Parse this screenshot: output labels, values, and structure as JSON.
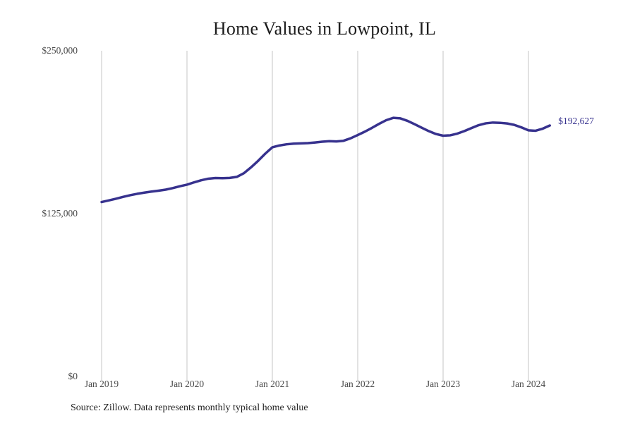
{
  "header": {
    "title": "Home Values in Lowpoint, IL"
  },
  "footer": {
    "source_note": "Source: Zillow. Data represents monthly typical home value"
  },
  "colors": {
    "line": "#37328e",
    "grid": "#c4c4c4",
    "axis_text": "#4a4a4a",
    "title_text": "#1c1c1c",
    "source_text": "#222222",
    "background": "#ffffff"
  },
  "chart_data": {
    "type": "line",
    "title": "Home Values in Lowpoint, IL",
    "series_name": "Monthly typical home value (USD)",
    "x": [
      "Jan 2019",
      "Feb 2019",
      "Mar 2019",
      "Apr 2019",
      "May 2019",
      "Jun 2019",
      "Jul 2019",
      "Aug 2019",
      "Sep 2019",
      "Oct 2019",
      "Nov 2019",
      "Dec 2019",
      "Jan 2020",
      "Feb 2020",
      "Mar 2020",
      "Apr 2020",
      "May 2020",
      "Jun 2020",
      "Jul 2020",
      "Aug 2020",
      "Sep 2020",
      "Oct 2020",
      "Nov 2020",
      "Dec 2020",
      "Jan 2021",
      "Feb 2021",
      "Mar 2021",
      "Apr 2021",
      "May 2021",
      "Jun 2021",
      "Jul 2021",
      "Aug 2021",
      "Sep 2021",
      "Oct 2021",
      "Nov 2021",
      "Dec 2021",
      "Jan 2022",
      "Feb 2022",
      "Mar 2022",
      "Apr 2022",
      "May 2022",
      "Jun 2022",
      "Jul 2022",
      "Aug 2022",
      "Sep 2022",
      "Oct 2022",
      "Nov 2022",
      "Dec 2022",
      "Jan 2023",
      "Feb 2023",
      "Mar 2023",
      "Apr 2023",
      "May 2023",
      "Jun 2023",
      "Jul 2023",
      "Aug 2023",
      "Sep 2023",
      "Oct 2023",
      "Nov 2023",
      "Dec 2023",
      "Jan 2024",
      "Feb 2024",
      "Mar 2024",
      "Apr 2024"
    ],
    "values": [
      133900,
      135100,
      136400,
      137800,
      139100,
      140200,
      141100,
      141900,
      142600,
      143400,
      144600,
      146000,
      147200,
      149000,
      150600,
      151800,
      152300,
      152200,
      152400,
      153200,
      156000,
      160500,
      165500,
      171000,
      175900,
      177300,
      178200,
      178700,
      178900,
      179100,
      179600,
      180200,
      180600,
      180400,
      180900,
      182800,
      185300,
      187900,
      190800,
      193900,
      196700,
      198500,
      198100,
      196200,
      193600,
      190900,
      188300,
      186100,
      184800,
      185100,
      186400,
      188400,
      190700,
      192900,
      194300,
      194900,
      194700,
      194200,
      193100,
      191200,
      188900,
      188600,
      190200,
      192627
    ],
    "x_tick_labels": [
      "Jan 2019",
      "Jan 2020",
      "Jan 2021",
      "Jan 2022",
      "Jan 2023",
      "Jan 2024"
    ],
    "y_ticks": [
      0,
      125000,
      250000
    ],
    "y_tick_labels": [
      "$0",
      "$125,000",
      "$250,000"
    ],
    "ylim": [
      0,
      250000
    ],
    "grid": "vertical",
    "legend": "none",
    "end_label": "$192,627",
    "source": "Source: Zillow. Data represents monthly typical home value"
  }
}
